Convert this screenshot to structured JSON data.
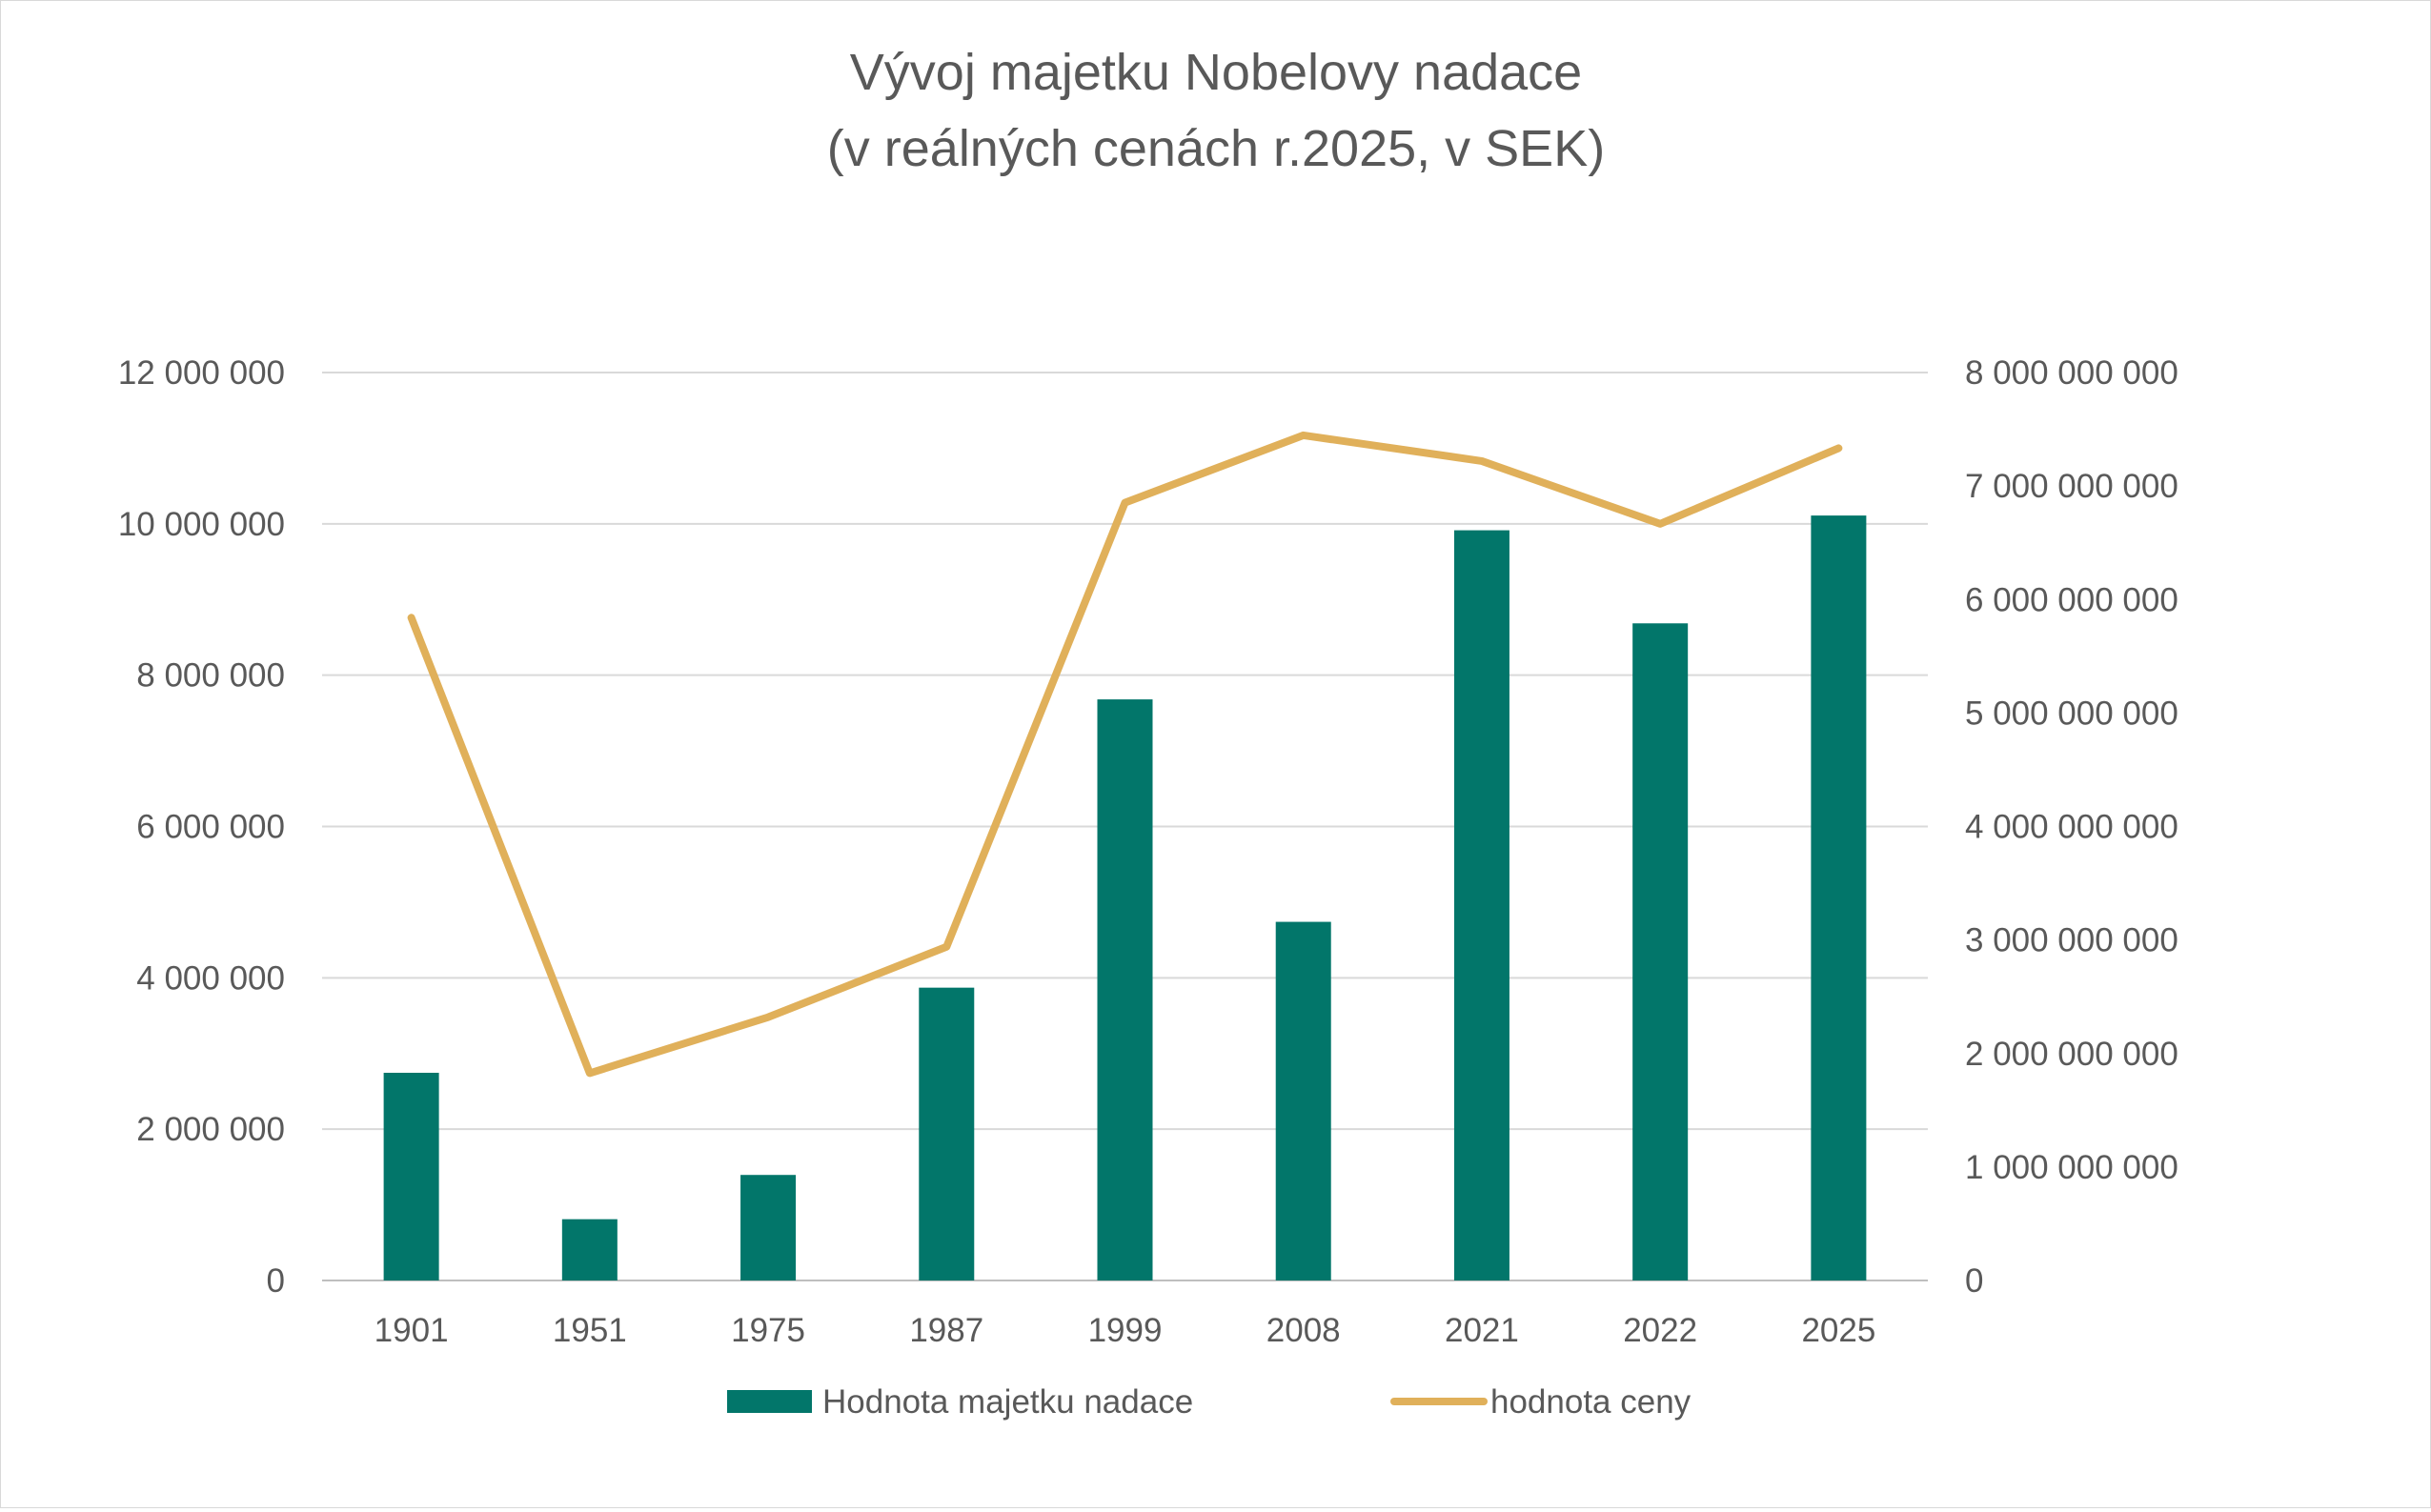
{
  "chart_data": {
    "type": "bar+line",
    "title_lines": [
      "Vývoj majetku Nobelovy nadace",
      "(v reálných cenách r.2025, v SEK)"
    ],
    "categories": [
      "1901",
      "1951",
      "1975",
      "1987",
      "1999",
      "2008",
      "2021",
      "2022",
      "2025"
    ],
    "series": [
      {
        "name": "Hodnota majetku nadace",
        "type": "bar",
        "axis": "right",
        "color": "#02766a",
        "values": [
          1830000000,
          540000000,
          930000000,
          2580000000,
          5120000000,
          3160000000,
          6610000000,
          5790000000,
          6740000000
        ]
      },
      {
        "name": "hodnota ceny",
        "type": "line",
        "axis": "left",
        "color": "#e0b05a",
        "values": [
          8760000,
          2740000,
          3480000,
          4410000,
          10280000,
          11170000,
          10830000,
          10000000,
          11000000
        ]
      }
    ],
    "y_left": {
      "min": 0,
      "max": 12000000,
      "ticks": [
        0,
        2000000,
        4000000,
        6000000,
        8000000,
        10000000,
        12000000
      ],
      "tick_labels": [
        "0",
        "2 000 000",
        "4 000 000",
        "6 000 000",
        "8 000 000",
        "10 000 000",
        "12 000 000"
      ]
    },
    "y_right": {
      "min": 0,
      "max": 8000000000,
      "ticks": [
        0,
        1000000000,
        2000000000,
        3000000000,
        4000000000,
        5000000000,
        6000000000,
        7000000000,
        8000000000
      ],
      "tick_labels": [
        "0",
        "1 000 000 000",
        "2 000 000 000",
        "3 000 000 000",
        "4 000 000 000",
        "5 000 000 000",
        "6 000 000 000",
        "7 000 000 000",
        "8 000 000 000"
      ]
    },
    "grid": true,
    "legend_position": "bottom"
  }
}
